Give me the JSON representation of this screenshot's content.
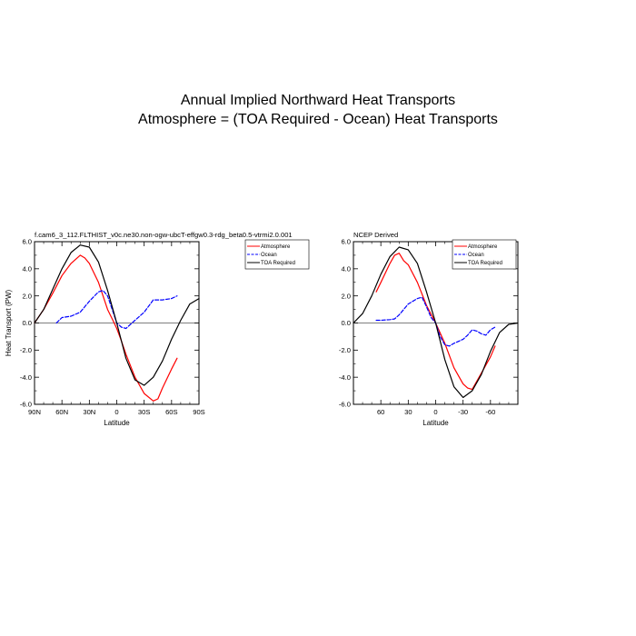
{
  "page": {
    "title_line1": "Annual Implied Northward Heat Transports",
    "title_line2": "Atmosphere = (TOA Required - Ocean) Heat Transports"
  },
  "colors": {
    "atmosphere": "#ff0000",
    "ocean": "#0000ff",
    "toa": "#000000"
  },
  "chart_data": [
    {
      "type": "line",
      "title": "f.cam6_3_112.FLTHIST_v0c.ne30.non-ogw-ubcT-effgw0.3-rdg_beta0.5-vtrmi2.0.001",
      "xlabel": "Latitude",
      "ylabel": "Heat Transport (PW)",
      "xlim": [
        90,
        -90
      ],
      "ylim": [
        -6,
        6
      ],
      "x_ticks": [
        90,
        60,
        30,
        0,
        -30,
        -60,
        -90
      ],
      "x_tick_labels": [
        "90N",
        "60N",
        "30N",
        "0",
        "30S",
        "60S",
        "90S"
      ],
      "y_ticks": [
        6,
        4,
        2,
        0,
        -2,
        -4,
        -6
      ],
      "y_tick_labels": [
        "6.0",
        "4.0",
        "2.0",
        "0.0",
        "-2.0",
        "-4.0",
        "-6.0"
      ],
      "zero_line": true,
      "legend": {
        "placement": "outside-right-top",
        "entries": [
          "Atmosphere",
          "Ocean",
          "TOA Required"
        ]
      },
      "series": [
        {
          "name": "Atmosphere",
          "style": "solid",
          "color": "#ff0000",
          "x": [
            90,
            80,
            70,
            60,
            50,
            40,
            35,
            30,
            20,
            10,
            5,
            0,
            -5,
            -10,
            -20,
            -30,
            -40,
            -45,
            -50,
            -60,
            -66
          ],
          "y": [
            0.0,
            1.0,
            2.2,
            3.5,
            4.4,
            5.0,
            4.8,
            4.4,
            3.0,
            1.0,
            0.3,
            -0.4,
            -1.3,
            -2.3,
            -4.0,
            -5.2,
            -5.75,
            -5.6,
            -4.8,
            -3.4,
            -2.6
          ]
        },
        {
          "name": "Ocean",
          "style": "dashed",
          "color": "#0000ff",
          "x": [
            66,
            60,
            50,
            40,
            30,
            20,
            15,
            10,
            5,
            0,
            -5,
            -10,
            -20,
            -30,
            -40,
            -50,
            -60,
            -66
          ],
          "y": [
            0.0,
            0.4,
            0.5,
            0.8,
            1.6,
            2.3,
            2.4,
            2.0,
            1.0,
            0.0,
            -0.3,
            -0.4,
            0.2,
            0.8,
            1.7,
            1.7,
            1.8,
            2.0
          ]
        },
        {
          "name": "TOA Required",
          "style": "solid",
          "color": "#000000",
          "x": [
            90,
            80,
            70,
            60,
            50,
            40,
            30,
            20,
            10,
            0,
            -10,
            -20,
            -30,
            -40,
            -50,
            -60,
            -70,
            -80,
            -90
          ],
          "y": [
            0.0,
            1.0,
            2.5,
            4.0,
            5.2,
            5.75,
            5.6,
            4.5,
            2.4,
            0.0,
            -2.6,
            -4.2,
            -4.6,
            -4.0,
            -2.8,
            -1.2,
            0.2,
            1.4,
            1.8
          ]
        }
      ]
    },
    {
      "type": "line",
      "title": "NCEP Derived",
      "xlabel": "Latitude",
      "ylabel": "",
      "xlim": [
        90,
        -90
      ],
      "ylim": [
        -6,
        6
      ],
      "x_ticks": [
        60,
        30,
        0,
        -30,
        -60
      ],
      "x_tick_labels": [
        "60",
        "30",
        "0",
        "-30",
        "-60"
      ],
      "y_ticks": [
        6,
        4,
        2,
        0,
        -2,
        -4,
        -6
      ],
      "y_tick_labels": [
        "6.0",
        "4.0",
        "2.0",
        "0.0",
        "-2.0",
        "-4.0",
        "-6.0"
      ],
      "zero_line": true,
      "legend": {
        "placement": "top-right-inside",
        "entries": [
          "Atmosphere",
          "Ocean",
          "TOA Required"
        ]
      },
      "series": [
        {
          "name": "Atmosphere",
          "style": "solid",
          "color": "#ff0000",
          "x": [
            65,
            60,
            50,
            45,
            40,
            35,
            30,
            20,
            10,
            0,
            -10,
            -20,
            -30,
            -35,
            -40,
            -45,
            -50,
            -60,
            -65
          ],
          "y": [
            2.3,
            3.0,
            4.4,
            5.0,
            5.15,
            4.6,
            4.3,
            3.0,
            1.3,
            0.0,
            -1.5,
            -3.3,
            -4.5,
            -4.8,
            -4.9,
            -4.3,
            -3.7,
            -2.5,
            -1.7
          ]
        },
        {
          "name": "Ocean",
          "style": "dashed",
          "color": "#0000ff",
          "x": [
            65,
            60,
            50,
            45,
            40,
            35,
            30,
            20,
            15,
            10,
            5,
            0,
            -5,
            -10,
            -15,
            -20,
            -30,
            -35,
            -40,
            -45,
            -50,
            -55,
            -60,
            -65
          ],
          "y": [
            0.2,
            0.2,
            0.25,
            0.3,
            0.6,
            1.0,
            1.4,
            1.8,
            1.9,
            1.2,
            0.4,
            0.0,
            -1.0,
            -1.6,
            -1.7,
            -1.5,
            -1.2,
            -0.9,
            -0.5,
            -0.6,
            -0.8,
            -0.9,
            -0.5,
            -0.3
          ]
        },
        {
          "name": "TOA Required",
          "style": "solid",
          "color": "#000000",
          "x": [
            90,
            80,
            70,
            60,
            50,
            40,
            30,
            20,
            10,
            0,
            -10,
            -20,
            -30,
            -40,
            -50,
            -60,
            -70,
            -80,
            -90
          ],
          "y": [
            0.0,
            0.7,
            2.0,
            3.6,
            4.9,
            5.6,
            5.4,
            4.4,
            2.3,
            0.0,
            -2.7,
            -4.7,
            -5.5,
            -5.0,
            -3.8,
            -2.1,
            -0.7,
            -0.1,
            0.0
          ]
        }
      ]
    }
  ]
}
